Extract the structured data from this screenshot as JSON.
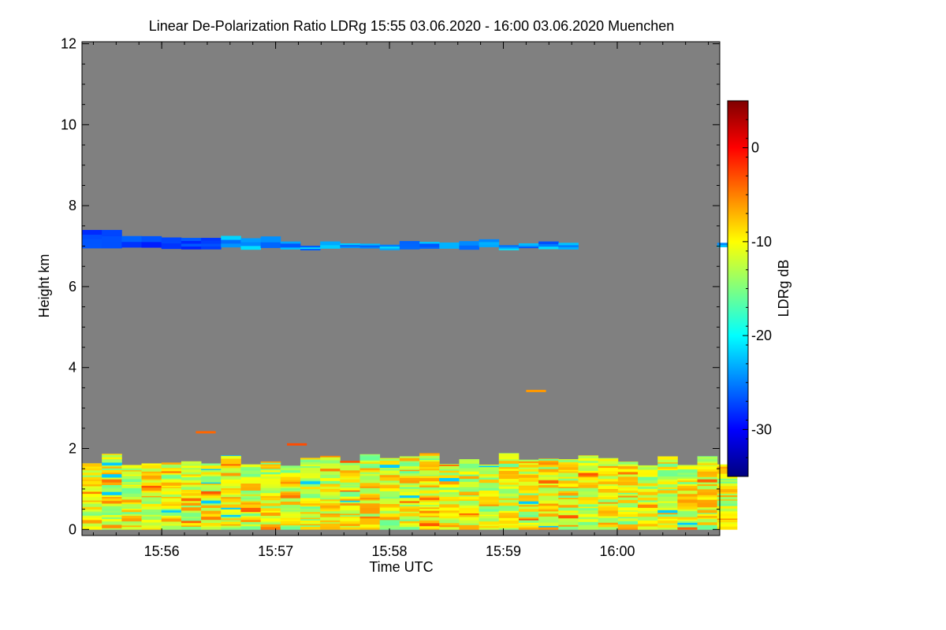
{
  "chart_data": {
    "type": "heatmap",
    "title": "Linear De-Polarization Ratio LDRg   15:55 03.06.2020 - 16:00 03.06.2020 Muenchen",
    "xlabel": "Time UTC",
    "ylabel": "Height km",
    "colorbar_label": "LDRg dB",
    "xlim_minutes": [
      15.3,
      20.9
    ],
    "x_ticks": [
      {
        "label": "15:56",
        "value": 16
      },
      {
        "label": "15:57",
        "value": 17
      },
      {
        "label": "15:58",
        "value": 18
      },
      {
        "label": "15:59",
        "value": 19
      },
      {
        "label": "16:00",
        "value": 20
      }
    ],
    "ylim": [
      -0.15,
      12.05
    ],
    "y_ticks": [
      0,
      2,
      4,
      6,
      8,
      10,
      12
    ],
    "y_tick_labels": [
      "0",
      "2",
      "4",
      "6",
      "8",
      "10",
      "12"
    ],
    "colorbar_range": [
      -35,
      5
    ],
    "colorbar_ticks": [
      0,
      -10,
      -20,
      -30
    ],
    "colorbar_tick_labels": [
      "0",
      "-10",
      "-20",
      "-30"
    ],
    "background_color": "#808080",
    "features": [
      {
        "name": "boundary-layer",
        "height_km": [
          0,
          1.9
        ],
        "ldr_db_range": [
          -16,
          -6
        ],
        "description": "dense mixed yellow/green layer"
      },
      {
        "name": "cirrus-layer",
        "height_km": [
          6.8,
          7.4
        ],
        "ldr_db_range": [
          -30,
          -20
        ],
        "description": "thin blue cloud layer"
      }
    ],
    "isolated_points": [
      {
        "time_min": 16.3,
        "height_km": 2.4,
        "ldr_db": -4
      },
      {
        "time_min": 17.1,
        "height_km": 2.1,
        "ldr_db": -3
      },
      {
        "time_min": 19.2,
        "height_km": 3.42,
        "ldr_db": -6
      }
    ]
  }
}
